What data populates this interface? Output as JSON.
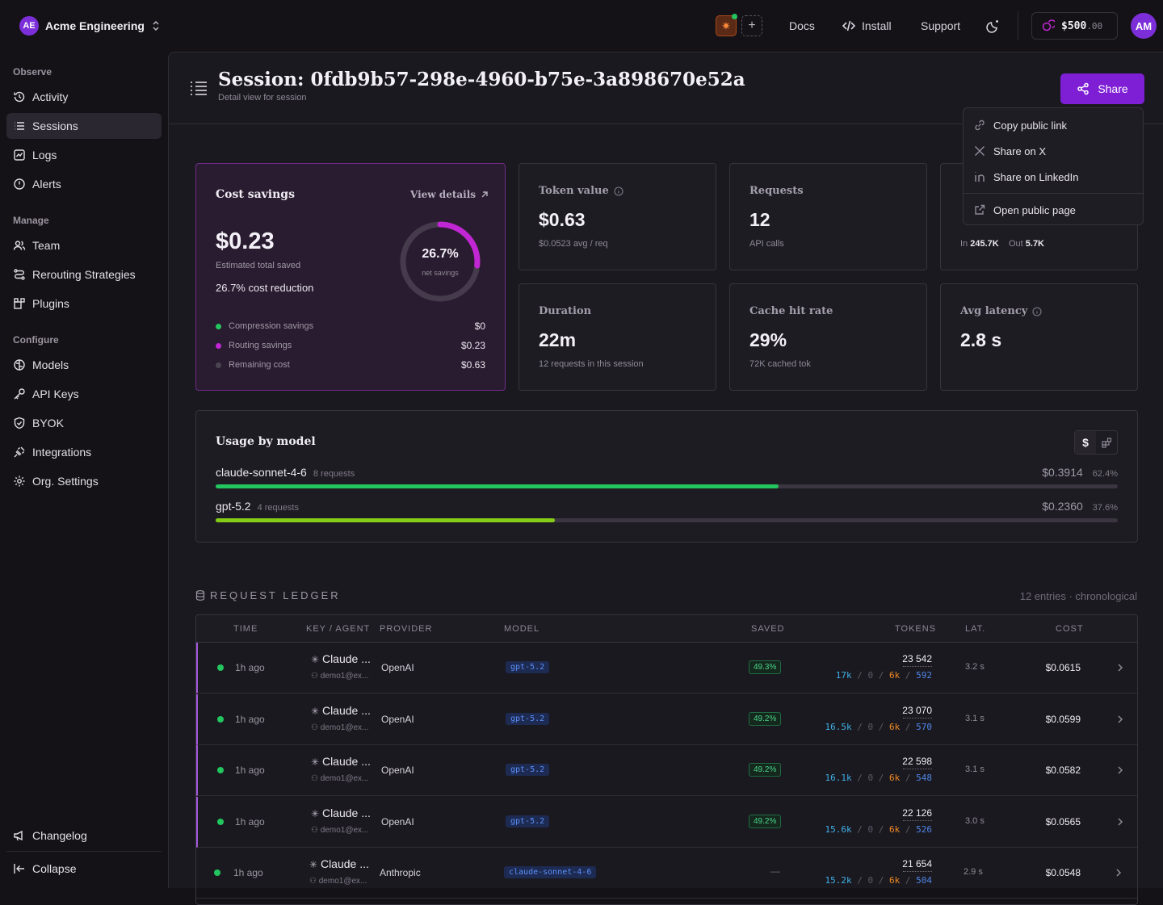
{
  "org": {
    "initials": "AE",
    "name": "Acme Engineering"
  },
  "topnav": {
    "docs": "Docs",
    "install": "Install",
    "support": "Support",
    "credit_main": "$500",
    "credit_dec": ".00",
    "user_initials": "AM"
  },
  "sidebar": {
    "observe": "Observe",
    "manage": "Manage",
    "configure": "Configure",
    "items": {
      "activity": "Activity",
      "sessions": "Sessions",
      "logs": "Logs",
      "alerts": "Alerts",
      "team": "Team",
      "rerouting": "Rerouting Strategies",
      "plugins": "Plugins",
      "models": "Models",
      "api_keys": "API Keys",
      "byok": "BYOK",
      "integrations": "Integrations",
      "org_settings": "Org. Settings",
      "changelog": "Changelog",
      "collapse": "Collapse"
    }
  },
  "header": {
    "title": "Session: 0fdb9b57-298e-4960-b75e-3a898670e52a",
    "subtitle": "Detail view for session",
    "share": "Share"
  },
  "share_menu": {
    "copy": "Copy public link",
    "x": "Share on X",
    "linkedin": "Share on LinkedIn",
    "open": "Open public page"
  },
  "cost_savings": {
    "title": "Cost savings",
    "view_details": "View details",
    "amount": "$0.23",
    "amount_label": "Estimated total saved",
    "reduction": "26.7% cost reduction",
    "ring_pct": "26.7%",
    "ring_label": "net savings",
    "ring_fraction": 0.267,
    "legend": [
      {
        "label": "Compression savings",
        "value": "$0",
        "color": "#22c55e"
      },
      {
        "label": "Routing savings",
        "value": "$0.23",
        "color": "#c026d3"
      },
      {
        "label": "Remaining cost",
        "value": "$0.63",
        "color": "#4a4451"
      }
    ]
  },
  "metrics": {
    "token_value": {
      "label": "Token value",
      "value": "$0.63",
      "sub": "$0.0523 avg / req"
    },
    "requests": {
      "label": "Requests",
      "value": "12",
      "sub": "API calls"
    },
    "tokens": {
      "in_label": "In",
      "in_value": "245.7K",
      "out_label": "Out",
      "out_value": "5.7K"
    },
    "duration": {
      "label": "Duration",
      "value": "22m",
      "sub": "12 requests in this session"
    },
    "cache": {
      "label": "Cache hit rate",
      "value": "29%",
      "sub": "72K cached tok"
    },
    "latency": {
      "label": "Avg latency",
      "value": "2.8 s"
    }
  },
  "usage": {
    "title": "Usage by model",
    "models": [
      {
        "name": "claude-sonnet-4-6",
        "requests": "8 requests",
        "cost": "$0.3914",
        "pct": "62.4%",
        "fraction": 0.624,
        "color": "#22c55e"
      },
      {
        "name": "gpt-5.2",
        "requests": "4 requests",
        "cost": "$0.2360",
        "pct": "37.6%",
        "fraction": 0.376,
        "color": "#84cc16"
      }
    ]
  },
  "ledger": {
    "title": "REQUEST LEDGER",
    "meta": "12 entries · chronological",
    "headers": {
      "time": "TIME",
      "key": "KEY / AGENT",
      "provider": "PROVIDER",
      "model": "MODEL",
      "saved": "SAVED",
      "tokens": "TOKENS",
      "lat": "LAT.",
      "cost": "COST"
    },
    "rows": [
      {
        "time": "1h ago",
        "agent": "Claude ...",
        "user": "demo1@ex...",
        "provider": "OpenAI",
        "model": "gpt-5.2",
        "saved": "49.3%",
        "total": "23 542",
        "t1": "17k",
        "t2": "0",
        "t3": "6k",
        "t4": "592",
        "lat": "3.2 s",
        "cost": "$0.0615"
      },
      {
        "time": "1h ago",
        "agent": "Claude ...",
        "user": "demo1@ex...",
        "provider": "OpenAI",
        "model": "gpt-5.2",
        "saved": "49.2%",
        "total": "23 070",
        "t1": "16.5k",
        "t2": "0",
        "t3": "6k",
        "t4": "570",
        "lat": "3.1 s",
        "cost": "$0.0599"
      },
      {
        "time": "1h ago",
        "agent": "Claude ...",
        "user": "demo1@ex...",
        "provider": "OpenAI",
        "model": "gpt-5.2",
        "saved": "49.2%",
        "total": "22 598",
        "t1": "16.1k",
        "t2": "0",
        "t3": "6k",
        "t4": "548",
        "lat": "3.1 s",
        "cost": "$0.0582"
      },
      {
        "time": "1h ago",
        "agent": "Claude ...",
        "user": "demo1@ex...",
        "provider": "OpenAI",
        "model": "gpt-5.2",
        "saved": "49.2%",
        "total": "22 126",
        "t1": "15.6k",
        "t2": "0",
        "t3": "6k",
        "t4": "526",
        "lat": "3.0 s",
        "cost": "$0.0565"
      },
      {
        "time": "1h ago",
        "agent": "Claude ...",
        "user": "demo1@ex...",
        "provider": "Anthropic",
        "model": "claude-sonnet-4-6",
        "saved": "—",
        "total": "21 654",
        "t1": "15.2k",
        "t2": "0",
        "t3": "6k",
        "t4": "504",
        "lat": "2.9 s",
        "cost": "$0.0548"
      }
    ],
    "sep": "/"
  }
}
